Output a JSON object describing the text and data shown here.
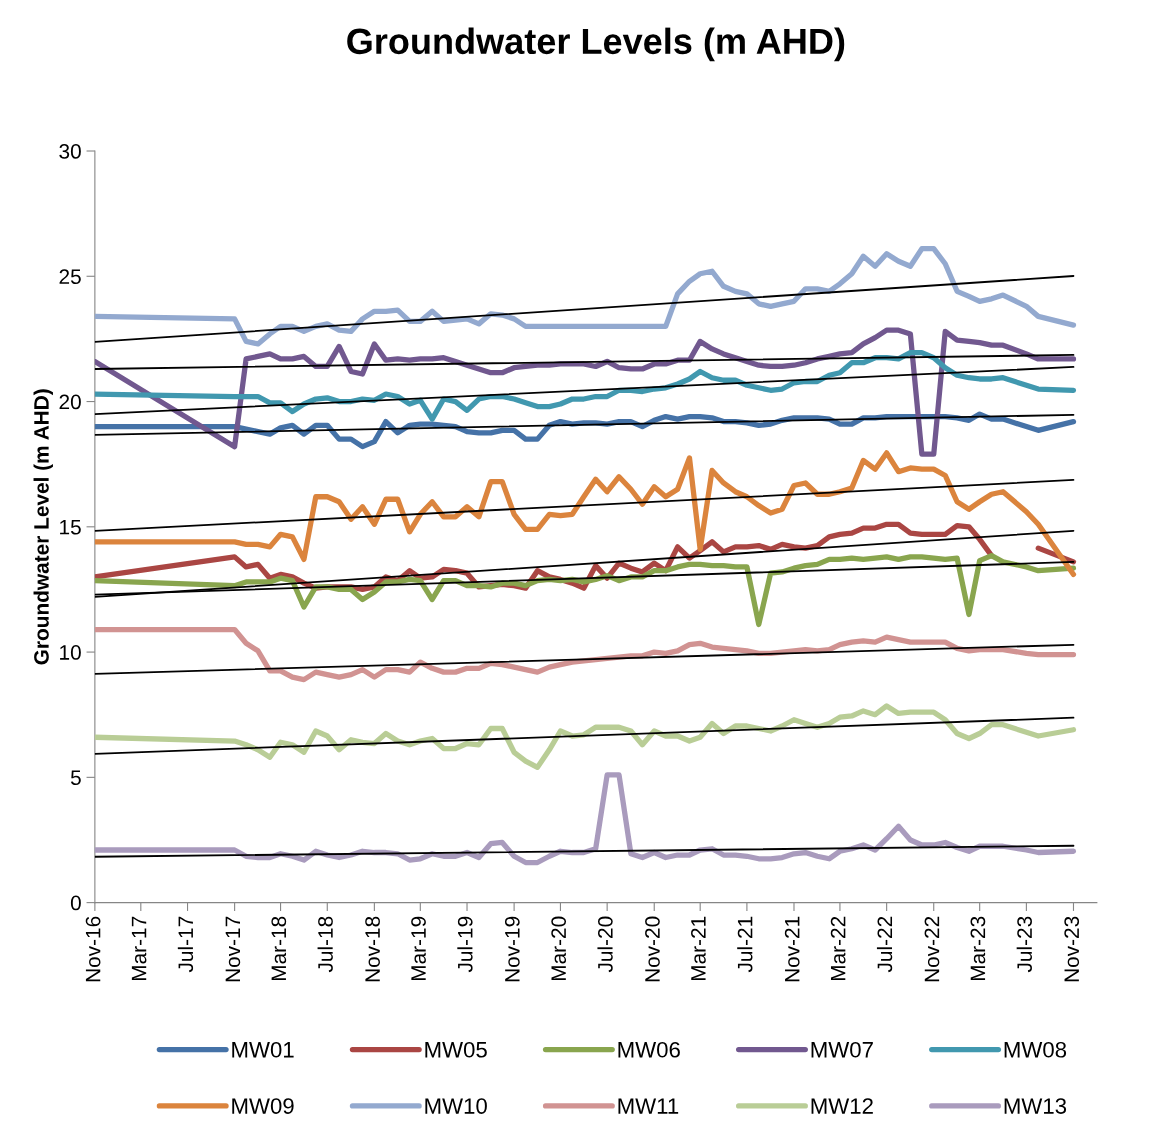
{
  "chart_data": {
    "type": "line",
    "title": "Groundwater Levels (m AHD)",
    "ylabel": "Groundwater Level (m AHD)",
    "x": [
      "2016-11",
      "2017-11",
      "2017-12",
      "2018-01",
      "2018-02",
      "2018-03",
      "2018-04",
      "2018-05",
      "2018-06",
      "2018-07",
      "2018-08",
      "2018-09",
      "2018-10",
      "2018-11",
      "2018-12",
      "2019-01",
      "2019-02",
      "2019-03",
      "2019-04",
      "2019-05",
      "2019-06",
      "2019-07",
      "2019-08",
      "2019-09",
      "2019-10",
      "2019-11",
      "2019-12",
      "2020-01",
      "2020-02",
      "2020-03",
      "2020-04",
      "2020-05",
      "2020-06",
      "2020-07",
      "2020-08",
      "2020-09",
      "2020-10",
      "2020-11",
      "2020-12",
      "2021-01",
      "2021-02",
      "2021-03",
      "2021-04",
      "2021-05",
      "2021-06",
      "2021-07",
      "2021-08",
      "2021-09",
      "2021-10",
      "2021-11",
      "2021-12",
      "2022-01",
      "2022-02",
      "2022-03",
      "2022-04",
      "2022-05",
      "2022-06",
      "2022-07",
      "2022-08",
      "2022-09",
      "2022-10",
      "2022-11",
      "2022-12",
      "2023-01",
      "2023-02",
      "2023-03",
      "2023-04",
      "2023-05",
      "2023-07",
      "2023-08",
      "2023-11"
    ],
    "xlim": [
      "2016-11",
      "2024-01"
    ],
    "xticks": [
      {
        "value": "2016-11",
        "label": "Nov-16"
      },
      {
        "value": "2017-03",
        "label": "Mar-17"
      },
      {
        "value": "2017-07",
        "label": "Jul-17"
      },
      {
        "value": "2017-11",
        "label": "Nov-17"
      },
      {
        "value": "2018-03",
        "label": "Mar-18"
      },
      {
        "value": "2018-07",
        "label": "Jul-18"
      },
      {
        "value": "2018-11",
        "label": "Nov-18"
      },
      {
        "value": "2019-03",
        "label": "Mar-19"
      },
      {
        "value": "2019-07",
        "label": "Jul-19"
      },
      {
        "value": "2019-11",
        "label": "Nov-19"
      },
      {
        "value": "2020-03",
        "label": "Mar-20"
      },
      {
        "value": "2020-07",
        "label": "Jul-20"
      },
      {
        "value": "2020-11",
        "label": "Nov-20"
      },
      {
        "value": "2021-03",
        "label": "Mar-21"
      },
      {
        "value": "2021-07",
        "label": "Jul-21"
      },
      {
        "value": "2021-11",
        "label": "Nov-21"
      },
      {
        "value": "2022-03",
        "label": "Mar-22"
      },
      {
        "value": "2022-07",
        "label": "Jul-22"
      },
      {
        "value": "2022-11",
        "label": "Nov-22"
      },
      {
        "value": "2023-03",
        "label": "Mar-23"
      },
      {
        "value": "2023-07",
        "label": "Jul-23"
      },
      {
        "value": "2023-11",
        "label": "Nov-23"
      }
    ],
    "ylim": [
      0,
      30
    ],
    "yticks": [
      0,
      5,
      10,
      15,
      20,
      25,
      30
    ],
    "grid": false,
    "legend": "bottom",
    "marker": "none",
    "line_style": "solid",
    "series": [
      {
        "name": "MW01",
        "color": "#4572a7",
        "values": [
          19.0,
          19.0,
          18.9,
          18.8,
          18.7,
          18.95,
          19.05,
          18.7,
          19.05,
          19.05,
          18.5,
          18.5,
          18.2,
          18.4,
          19.2,
          18.75,
          19.05,
          19.1,
          19.1,
          19.05,
          19.0,
          18.8,
          18.75,
          18.75,
          18.85,
          18.85,
          18.5,
          18.5,
          19.05,
          19.2,
          19.1,
          19.15,
          19.15,
          19.1,
          19.2,
          19.2,
          19.0,
          19.25,
          19.4,
          19.3,
          19.4,
          19.4,
          19.35,
          19.2,
          19.2,
          19.15,
          19.05,
          19.1,
          19.25,
          19.35,
          19.35,
          19.35,
          19.3,
          19.1,
          19.1,
          19.35,
          19.35,
          19.4,
          19.4,
          19.4,
          19.4,
          19.4,
          19.4,
          19.35,
          19.25,
          19.5,
          19.3,
          19.3,
          19.0,
          18.85,
          19.2
        ]
      },
      {
        "name": "MW05",
        "color": "#aa4643",
        "values": [
          13.0,
          13.8,
          13.4,
          13.5,
          12.95,
          13.1,
          13.0,
          12.75,
          12.55,
          12.6,
          12.6,
          12.6,
          12.5,
          12.6,
          13.0,
          12.85,
          13.25,
          12.95,
          13.0,
          13.3,
          13.25,
          13.15,
          12.6,
          12.65,
          12.7,
          12.65,
          12.55,
          13.25,
          13.0,
          12.9,
          12.75,
          12.55,
          13.45,
          12.95,
          13.55,
          13.35,
          13.2,
          13.55,
          13.25,
          14.2,
          13.75,
          14.05,
          14.4,
          14.0,
          14.2,
          14.2,
          14.25,
          14.1,
          14.3,
          14.2,
          14.15,
          14.25,
          14.6,
          14.7,
          14.75,
          14.95,
          14.95,
          15.1,
          15.1,
          14.75,
          14.7,
          14.7,
          14.7,
          15.05,
          15.0,
          14.5,
          13.85,
          null,
          null,
          14.15,
          13.6
        ]
      },
      {
        "name": "MW06",
        "color": "#89a54e",
        "values": [
          12.85,
          12.65,
          12.8,
          12.8,
          12.8,
          12.95,
          12.85,
          11.8,
          12.6,
          12.6,
          12.5,
          12.5,
          12.1,
          12.4,
          12.8,
          12.8,
          12.9,
          12.85,
          12.1,
          12.85,
          12.85,
          12.65,
          12.65,
          12.6,
          12.75,
          12.75,
          12.65,
          12.85,
          12.9,
          12.85,
          12.9,
          12.8,
          12.9,
          13.05,
          12.85,
          13.0,
          13.0,
          13.25,
          13.25,
          13.4,
          13.5,
          13.5,
          13.45,
          13.45,
          13.4,
          13.4,
          11.1,
          13.15,
          13.2,
          13.35,
          13.45,
          13.5,
          13.7,
          13.7,
          13.75,
          13.7,
          13.75,
          13.8,
          13.7,
          13.8,
          13.8,
          13.75,
          13.7,
          13.75,
          11.5,
          13.65,
          13.85,
          13.6,
          13.4,
          13.25,
          13.35
        ]
      },
      {
        "name": "MW07",
        "color": "#71588f",
        "values": [
          21.6,
          18.2,
          21.7,
          21.8,
          21.9,
          21.7,
          21.7,
          21.8,
          21.4,
          21.4,
          22.2,
          21.2,
          21.1,
          22.3,
          21.65,
          21.7,
          21.65,
          21.7,
          21.7,
          21.75,
          21.6,
          21.45,
          21.3,
          21.15,
          21.15,
          21.35,
          21.4,
          21.45,
          21.45,
          21.5,
          21.5,
          21.5,
          21.4,
          21.6,
          21.35,
          21.3,
          21.3,
          21.5,
          21.5,
          21.65,
          21.65,
          22.4,
          22.1,
          21.9,
          21.75,
          21.6,
          21.45,
          21.4,
          21.4,
          21.45,
          21.55,
          21.7,
          21.8,
          21.9,
          21.95,
          22.3,
          22.55,
          22.85,
          22.85,
          22.7,
          17.9,
          17.9,
          22.8,
          22.45,
          22.4,
          22.35,
          22.25,
          22.25,
          21.9,
          21.7,
          21.7
        ]
      },
      {
        "name": "MW08",
        "color": "#4198af",
        "values": [
          20.3,
          20.2,
          20.2,
          20.2,
          19.95,
          19.95,
          19.6,
          19.9,
          20.1,
          20.15,
          20.0,
          20.0,
          20.1,
          20.05,
          20.3,
          20.2,
          19.9,
          20.05,
          19.3,
          20.1,
          20.0,
          19.65,
          20.1,
          20.2,
          20.2,
          20.1,
          19.95,
          19.8,
          19.8,
          19.9,
          20.1,
          20.1,
          20.2,
          20.2,
          20.45,
          20.45,
          20.4,
          20.5,
          20.55,
          20.7,
          20.9,
          21.2,
          20.95,
          20.85,
          20.85,
          20.65,
          20.55,
          20.45,
          20.5,
          20.75,
          20.8,
          20.8,
          21.05,
          21.15,
          21.55,
          21.55,
          21.75,
          21.75,
          21.7,
          21.95,
          21.95,
          21.75,
          21.35,
          21.05,
          20.95,
          20.9,
          20.9,
          20.95,
          20.65,
          20.5,
          20.45
        ]
      },
      {
        "name": "MW09",
        "color": "#db843d",
        "values": [
          14.4,
          14.4,
          14.3,
          14.3,
          14.2,
          14.7,
          14.6,
          13.7,
          16.2,
          16.2,
          16.0,
          15.3,
          15.8,
          15.1,
          16.1,
          16.1,
          14.8,
          15.5,
          16.0,
          15.4,
          15.4,
          15.8,
          15.4,
          16.8,
          16.8,
          15.5,
          14.9,
          14.9,
          15.5,
          15.45,
          15.5,
          16.2,
          16.9,
          16.4,
          17.0,
          16.5,
          15.9,
          16.6,
          16.2,
          16.5,
          17.75,
          14.1,
          17.25,
          16.75,
          16.4,
          16.2,
          15.85,
          15.55,
          15.7,
          16.65,
          16.75,
          16.3,
          16.3,
          16.4,
          16.55,
          17.65,
          17.3,
          17.95,
          17.2,
          17.35,
          17.3,
          17.3,
          17.05,
          16.0,
          15.7,
          16.0,
          16.3,
          16.4,
          15.6,
          15.1,
          13.1
        ]
      },
      {
        "name": "MW10",
        "color": "#93a9cf",
        "values": [
          23.4,
          23.3,
          22.4,
          22.3,
          22.7,
          23.0,
          23.0,
          22.8,
          23.0,
          23.1,
          22.85,
          22.8,
          23.3,
          23.6,
          23.6,
          23.65,
          23.2,
          23.2,
          23.6,
          23.2,
          23.25,
          23.3,
          23.1,
          23.5,
          23.45,
          23.3,
          23.0,
          23.0,
          23.0,
          23.0,
          23.0,
          23.0,
          23.0,
          23.0,
          23.0,
          23.0,
          23.0,
          23.0,
          23.0,
          24.3,
          24.8,
          25.1,
          25.2,
          24.6,
          24.4,
          24.3,
          23.9,
          23.8,
          23.9,
          24.0,
          24.5,
          24.5,
          24.4,
          24.7,
          25.1,
          25.8,
          25.4,
          25.9,
          25.6,
          25.4,
          26.1,
          26.1,
          25.5,
          24.4,
          24.2,
          24.0,
          24.1,
          24.25,
          23.8,
          23.4,
          23.05
        ]
      },
      {
        "name": "MW11",
        "color": "#d19392",
        "values": [
          10.9,
          10.9,
          10.35,
          10.05,
          9.25,
          9.25,
          9.0,
          8.9,
          9.2,
          9.1,
          9.0,
          9.1,
          9.3,
          9.0,
          9.3,
          9.3,
          9.2,
          9.6,
          9.35,
          9.2,
          9.2,
          9.35,
          9.35,
          9.55,
          9.5,
          9.4,
          9.3,
          9.2,
          9.4,
          9.5,
          9.6,
          9.65,
          9.7,
          9.75,
          9.8,
          9.85,
          9.85,
          10.0,
          9.95,
          10.05,
          10.3,
          10.35,
          10.2,
          10.15,
          10.1,
          10.05,
          9.95,
          9.95,
          10.0,
          10.05,
          10.1,
          10.05,
          10.1,
          10.3,
          10.4,
          10.45,
          10.4,
          10.6,
          10.5,
          10.4,
          10.4,
          10.4,
          10.4,
          10.15,
          10.05,
          10.1,
          10.1,
          10.1,
          9.95,
          9.9,
          9.9
        ]
      },
      {
        "name": "MW12",
        "color": "#b9cd96",
        "values": [
          6.6,
          6.45,
          6.3,
          6.1,
          5.8,
          6.4,
          6.3,
          6.0,
          6.85,
          6.65,
          6.1,
          6.5,
          6.4,
          6.35,
          6.75,
          6.45,
          6.3,
          6.45,
          6.55,
          6.15,
          6.15,
          6.35,
          6.3,
          6.95,
          6.95,
          6.0,
          5.65,
          5.4,
          6.1,
          6.85,
          6.65,
          6.7,
          7.0,
          7.0,
          7.0,
          6.85,
          6.3,
          6.85,
          6.65,
          6.65,
          6.45,
          6.6,
          7.15,
          6.75,
          7.05,
          7.05,
          6.95,
          6.85,
          7.05,
          7.3,
          7.15,
          7.0,
          7.15,
          7.4,
          7.45,
          7.65,
          7.5,
          7.85,
          7.55,
          7.6,
          7.6,
          7.6,
          7.3,
          6.75,
          6.55,
          6.75,
          7.1,
          7.1,
          6.8,
          6.65,
          6.9
        ]
      },
      {
        "name": "MW13",
        "color": "#a99bbd",
        "values": [
          2.1,
          2.1,
          1.85,
          1.8,
          1.8,
          1.95,
          1.85,
          1.7,
          2.05,
          1.9,
          1.8,
          1.9,
          2.05,
          2.0,
          2.0,
          1.95,
          1.7,
          1.75,
          1.95,
          1.85,
          1.85,
          2.0,
          1.8,
          2.35,
          2.4,
          1.85,
          1.6,
          1.6,
          1.85,
          2.05,
          2.0,
          2.0,
          2.15,
          5.1,
          5.1,
          1.95,
          1.8,
          2.0,
          1.8,
          1.9,
          1.9,
          2.1,
          2.15,
          1.9,
          1.9,
          1.85,
          1.75,
          1.75,
          1.8,
          1.95,
          2.0,
          1.85,
          1.75,
          2.05,
          2.15,
          2.3,
          2.1,
          2.55,
          3.05,
          2.5,
          2.3,
          2.3,
          2.4,
          2.2,
          2.05,
          2.25,
          2.25,
          2.25,
          2.1,
          2.0,
          2.05
        ]
      },
      {
        "type": "line",
        "color": "#000000",
        "x": [
          "2016-11",
          "2023-11"
        ],
        "values": [
          22.38,
          25.01
        ]
      },
      {
        "type": "line",
        "color": "#000000",
        "x": [
          "2016-11",
          "2023-11"
        ],
        "values": [
          21.3,
          21.86
        ]
      },
      {
        "type": "line",
        "color": "#000000",
        "x": [
          "2016-11",
          "2023-11"
        ],
        "values": [
          19.5,
          21.38
        ]
      },
      {
        "type": "line",
        "color": "#000000",
        "x": [
          "2016-11",
          "2023-11"
        ],
        "values": [
          18.67,
          19.47
        ]
      },
      {
        "type": "line",
        "color": "#000000",
        "x": [
          "2016-11",
          "2023-11"
        ],
        "values": [
          14.84,
          16.87
        ]
      },
      {
        "type": "line",
        "color": "#000000",
        "x": [
          "2016-11",
          "2023-11"
        ],
        "values": [
          12.2,
          14.84
        ]
      },
      {
        "type": "line",
        "color": "#000000",
        "x": [
          "2016-11",
          "2023-11"
        ],
        "values": [
          12.29,
          13.6
        ]
      },
      {
        "type": "line",
        "color": "#000000",
        "x": [
          "2016-11",
          "2023-11"
        ],
        "values": [
          9.13,
          10.29
        ]
      },
      {
        "type": "line",
        "color": "#000000",
        "x": [
          "2016-11",
          "2023-11"
        ],
        "values": [
          5.94,
          7.38
        ]
      },
      {
        "type": "line",
        "color": "#000000",
        "x": [
          "2016-11",
          "2023-11"
        ],
        "values": [
          1.83,
          2.27
        ]
      }
    ]
  }
}
